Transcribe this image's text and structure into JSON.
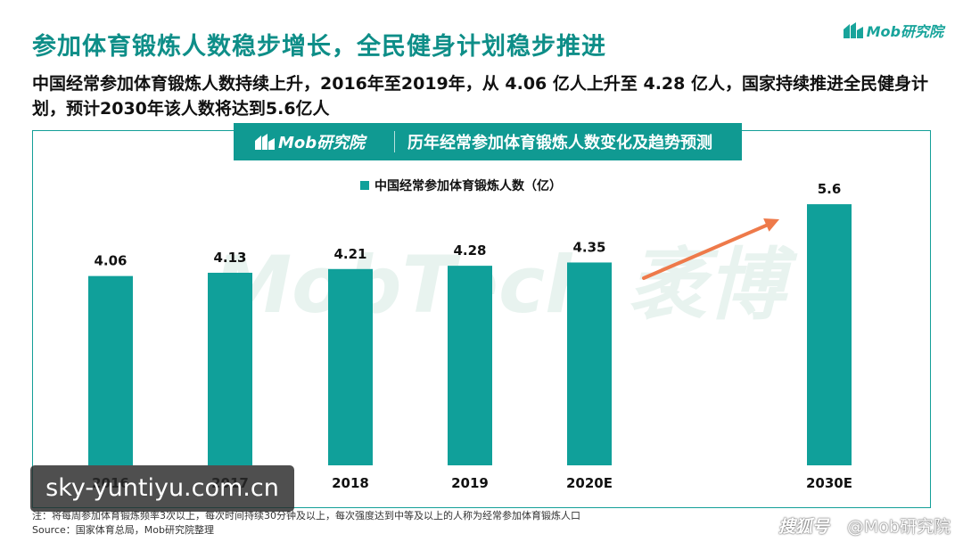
{
  "header": {
    "title": "参加体育锻炼人数稳步增长，全民健身计划稳步推进",
    "brand": "Mob研究院",
    "subtitle": "中国经常参加体育锻炼人数持续上升，2016年至2019年，从 4.06 亿人上升至 4.28 亿人，国家持续推进全民健身计划，预计2030年该人数将达到5.6亿人"
  },
  "banner": {
    "logo_text": "Mob研究院",
    "title": "历年经常参加体育锻炼人数变化及趋势预测"
  },
  "watermarks": {
    "chart_bg": "MobTech 袤博",
    "site": "sky-yuntiyu.com.cn",
    "footer_left": "搜狐号",
    "footer_right": "@Mob研究院"
  },
  "footnotes": {
    "note": "注：将每周参加体育锻炼频率3次以上，每次时间持续30分钟及以上，每次强度达到中等及以上的人称为经常参加体育锻炼人口",
    "source": "Source：国家体育总局，Mob研究院整理"
  },
  "colors": {
    "bar": "#10a09a",
    "title": "#0e8e88",
    "arrow": "#ee7a4a"
  },
  "icons": {
    "brand": "mob-logo-icon",
    "arrow": "trend-arrow-icon"
  },
  "chart_data": {
    "type": "bar",
    "title": "历年经常参加体育锻炼人数变化及趋势预测",
    "categories": [
      "2016",
      "2017",
      "2018",
      "2019",
      "2020E",
      "2030E"
    ],
    "series": [
      {
        "name": "中国经常参加体育锻炼人数（亿）",
        "values": [
          4.06,
          4.13,
          4.21,
          4.28,
          4.35,
          5.6
        ]
      }
    ],
    "value_labels": [
      "4.06",
      "4.13",
      "4.21",
      "4.28",
      "4.35",
      "5.6"
    ],
    "ylim": [
      0,
      6.5
    ],
    "grid": false,
    "legend": "top-center",
    "annotations": [
      "trend arrow from 2020E to 2030E"
    ]
  }
}
